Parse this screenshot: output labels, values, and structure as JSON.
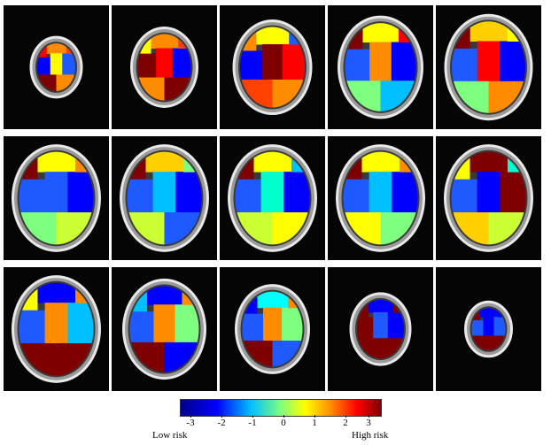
{
  "colorbar": {
    "ticks": [
      "-3",
      "-2",
      "-1",
      "0",
      "1",
      "2",
      "3"
    ],
    "low_label": "Low risk",
    "high_label": "High risk",
    "colormap": [
      "#00008b",
      "#0000ff",
      "#00bfff",
      "#7fff7f",
      "#ffff00",
      "#ff8c00",
      "#ff0000",
      "#7f0000"
    ]
  },
  "slices": [
    {
      "row": 0,
      "col": 0,
      "regions": [
        "#ff8c00",
        "#ff0000",
        "#0000ff",
        "#ffff00",
        "#7f0000",
        "#1e5aff",
        "#ff4000",
        "#ff8c00"
      ]
    },
    {
      "row": 0,
      "col": 1,
      "regions": [
        "#ff8c00",
        "#ffff00",
        "#7f0000",
        "#ff0000",
        "#ff8c00",
        "#0000ff",
        "#ff4000",
        "#7f0000"
      ]
    },
    {
      "row": 0,
      "col": 2,
      "regions": [
        "#ffff00",
        "#ff8c00",
        "#0000ff",
        "#7f0000",
        "#ff4000",
        "#ff0000",
        "#1e5aff",
        "#ff8c00"
      ]
    },
    {
      "row": 0,
      "col": 3,
      "regions": [
        "#ffff00",
        "#7f0000",
        "#1e5aff",
        "#ff8c00",
        "#7fff7f",
        "#0000ff",
        "#ff0000",
        "#00bfff"
      ]
    },
    {
      "row": 0,
      "col": 4,
      "regions": [
        "#ffd000",
        "#7f0000",
        "#1e5aff",
        "#ff0000",
        "#7fff7f",
        "#0000ff",
        "#ffff00",
        "#ff8c00"
      ]
    },
    {
      "row": 1,
      "col": 0,
      "regions": [
        "#ffff00",
        "#7f0000",
        "#1e5aff",
        "#1e5aff",
        "#7fff7f",
        "#0000ff",
        "#ff8c00",
        "#ccff33"
      ]
    },
    {
      "row": 1,
      "col": 1,
      "regions": [
        "#ffd000",
        "#7f0000",
        "#1e5aff",
        "#00bfff",
        "#ccff33",
        "#0000ff",
        "#7fff7f",
        "#1e5aff"
      ]
    },
    {
      "row": 1,
      "col": 2,
      "regions": [
        "#ffff00",
        "#7f0000",
        "#1e5aff",
        "#00ffcc",
        "#ccff33",
        "#0000ff",
        "#00bfff",
        "#ffff00"
      ]
    },
    {
      "row": 1,
      "col": 3,
      "regions": [
        "#ffff00",
        "#7f0000",
        "#1e5aff",
        "#00bfff",
        "#ffff00",
        "#0000ff",
        "#ff8c00",
        "#7fff7f"
      ]
    },
    {
      "row": 1,
      "col": 4,
      "regions": [
        "#7f0000",
        "#ffff00",
        "#1e5aff",
        "#0000ff",
        "#ffd000",
        "#7f0000",
        "#00ffcc",
        "#ccff33"
      ]
    },
    {
      "row": 2,
      "col": 0,
      "regions": [
        "#0000ff",
        "#ffff00",
        "#1e5aff",
        "#ff8c00",
        "#7f0000",
        "#00bfff",
        "#ff8c00",
        "#7f0000"
      ]
    },
    {
      "row": 2,
      "col": 1,
      "regions": [
        "#0000ff",
        "#00bfff",
        "#1e5aff",
        "#ff8c00",
        "#7f0000",
        "#7fff7f",
        "#ff8c00",
        "#0000ff"
      ]
    },
    {
      "row": 2,
      "col": 2,
      "regions": [
        "#00ffff",
        "#0000ff",
        "#1e5aff",
        "#ff8c00",
        "#7f0000",
        "#7fff7f",
        "#ff8c00",
        "#1e5aff"
      ]
    },
    {
      "row": 2,
      "col": 3,
      "regions": [
        "#0000ff",
        "#7f0000",
        "#7f0000",
        "#1e5aff",
        "#7f0000",
        "#0000ff",
        "#7f0000",
        "#7f0000"
      ]
    },
    {
      "row": 2,
      "col": 4,
      "regions": [
        "#0000ff",
        "#7f0000",
        "#1e5aff",
        "#0000ff",
        "#7f0000",
        "#1e5aff",
        "#0000ff",
        "#7f0000"
      ]
    }
  ]
}
